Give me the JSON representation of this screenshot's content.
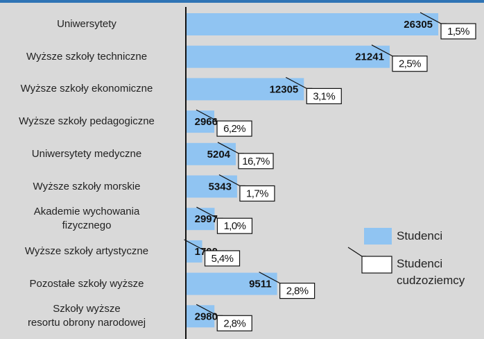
{
  "chart_data": {
    "type": "bar",
    "orientation": "horizontal",
    "categories": [
      "Uniwersytety",
      "Wyższe szkoły techniczne",
      "Wyższe szkoły ekonomiczne",
      "Wyższe szkoły pedagogiczne",
      "Uniwersytety medyczne",
      "Wyższe szkoły morskie",
      "Akademie wychowania\nfizycznego",
      "Wyższe szkoły artystyczne",
      "Pozostałe szkoły wyższe",
      "Szkoły wyższe\nresortu obrony narodowej"
    ],
    "series": [
      {
        "name": "Studenci",
        "color": "#90c4f2",
        "values": [
          26305,
          21241,
          12305,
          2966,
          5204,
          5343,
          2997,
          1700,
          9511,
          2980
        ]
      },
      {
        "name": "Studenci\ncudzoziemcy",
        "color": "#ffffff",
        "values": [
          1.5,
          2.5,
          3.1,
          6.2,
          16.7,
          1.7,
          1.0,
          5.4,
          2.8,
          2.8
        ],
        "value_labels": [
          "1,5%",
          "2,5%",
          "3,1%",
          "6,2%",
          "16,7%",
          "1,7%",
          "1,0%",
          "5,4%",
          "2,8%",
          "2,8%"
        ]
      }
    ],
    "xlim": [
      0,
      31000
    ]
  }
}
